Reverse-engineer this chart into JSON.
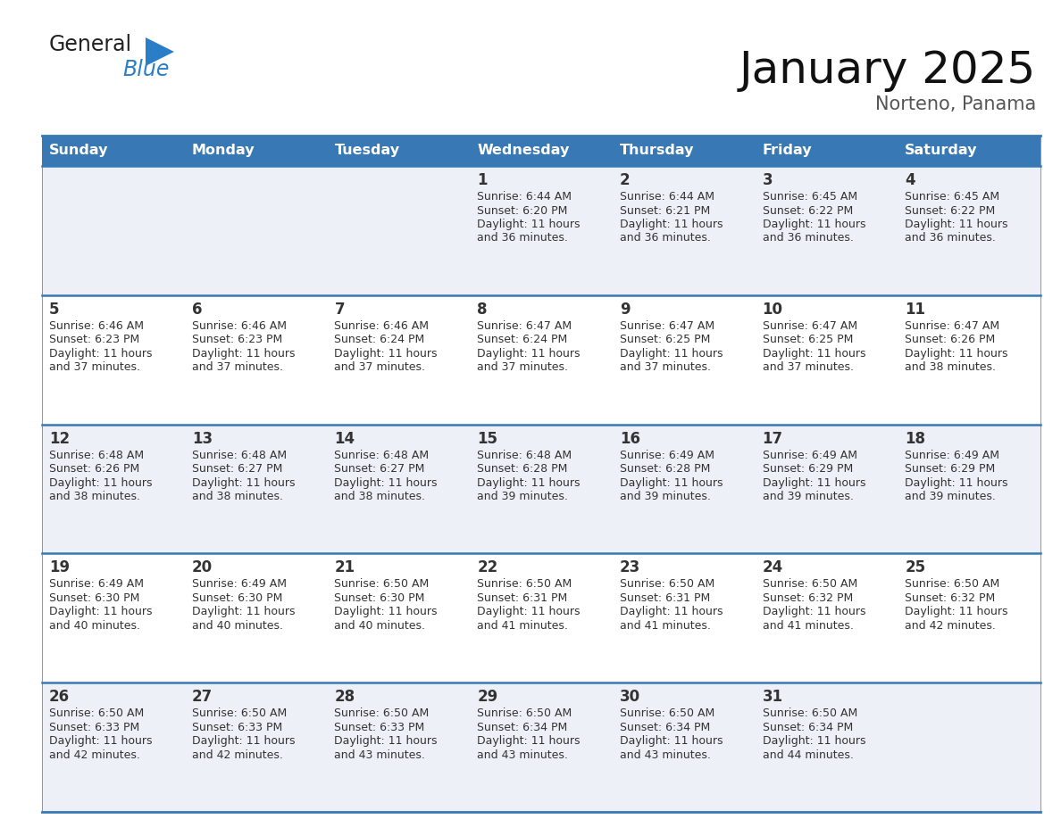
{
  "title": "January 2025",
  "subtitle": "Norteno, Panama",
  "header_color": "#3878b4",
  "header_text_color": "#ffffff",
  "row_bg_color_odd": "#edf1f7",
  "row_bg_color_even": "#ffffff",
  "cell_border_color": "#3878b4",
  "days_of_week": [
    "Sunday",
    "Monday",
    "Tuesday",
    "Wednesday",
    "Thursday",
    "Friday",
    "Saturday"
  ],
  "calendar_data": [
    [
      {
        "day": "",
        "sunrise": "",
        "sunset": "",
        "daylight": ""
      },
      {
        "day": "",
        "sunrise": "",
        "sunset": "",
        "daylight": ""
      },
      {
        "day": "",
        "sunrise": "",
        "sunset": "",
        "daylight": ""
      },
      {
        "day": "1",
        "sunrise": "6:44 AM",
        "sunset": "6:20 PM",
        "daylight": "11 hours and 36 minutes."
      },
      {
        "day": "2",
        "sunrise": "6:44 AM",
        "sunset": "6:21 PM",
        "daylight": "11 hours and 36 minutes."
      },
      {
        "day": "3",
        "sunrise": "6:45 AM",
        "sunset": "6:22 PM",
        "daylight": "11 hours and 36 minutes."
      },
      {
        "day": "4",
        "sunrise": "6:45 AM",
        "sunset": "6:22 PM",
        "daylight": "11 hours and 36 minutes."
      }
    ],
    [
      {
        "day": "5",
        "sunrise": "6:46 AM",
        "sunset": "6:23 PM",
        "daylight": "11 hours and 37 minutes."
      },
      {
        "day": "6",
        "sunrise": "6:46 AM",
        "sunset": "6:23 PM",
        "daylight": "11 hours and 37 minutes."
      },
      {
        "day": "7",
        "sunrise": "6:46 AM",
        "sunset": "6:24 PM",
        "daylight": "11 hours and 37 minutes."
      },
      {
        "day": "8",
        "sunrise": "6:47 AM",
        "sunset": "6:24 PM",
        "daylight": "11 hours and 37 minutes."
      },
      {
        "day": "9",
        "sunrise": "6:47 AM",
        "sunset": "6:25 PM",
        "daylight": "11 hours and 37 minutes."
      },
      {
        "day": "10",
        "sunrise": "6:47 AM",
        "sunset": "6:25 PM",
        "daylight": "11 hours and 37 minutes."
      },
      {
        "day": "11",
        "sunrise": "6:47 AM",
        "sunset": "6:26 PM",
        "daylight": "11 hours and 38 minutes."
      }
    ],
    [
      {
        "day": "12",
        "sunrise": "6:48 AM",
        "sunset": "6:26 PM",
        "daylight": "11 hours and 38 minutes."
      },
      {
        "day": "13",
        "sunrise": "6:48 AM",
        "sunset": "6:27 PM",
        "daylight": "11 hours and 38 minutes."
      },
      {
        "day": "14",
        "sunrise": "6:48 AM",
        "sunset": "6:27 PM",
        "daylight": "11 hours and 38 minutes."
      },
      {
        "day": "15",
        "sunrise": "6:48 AM",
        "sunset": "6:28 PM",
        "daylight": "11 hours and 39 minutes."
      },
      {
        "day": "16",
        "sunrise": "6:49 AM",
        "sunset": "6:28 PM",
        "daylight": "11 hours and 39 minutes."
      },
      {
        "day": "17",
        "sunrise": "6:49 AM",
        "sunset": "6:29 PM",
        "daylight": "11 hours and 39 minutes."
      },
      {
        "day": "18",
        "sunrise": "6:49 AM",
        "sunset": "6:29 PM",
        "daylight": "11 hours and 39 minutes."
      }
    ],
    [
      {
        "day": "19",
        "sunrise": "6:49 AM",
        "sunset": "6:30 PM",
        "daylight": "11 hours and 40 minutes."
      },
      {
        "day": "20",
        "sunrise": "6:49 AM",
        "sunset": "6:30 PM",
        "daylight": "11 hours and 40 minutes."
      },
      {
        "day": "21",
        "sunrise": "6:50 AM",
        "sunset": "6:30 PM",
        "daylight": "11 hours and 40 minutes."
      },
      {
        "day": "22",
        "sunrise": "6:50 AM",
        "sunset": "6:31 PM",
        "daylight": "11 hours and 41 minutes."
      },
      {
        "day": "23",
        "sunrise": "6:50 AM",
        "sunset": "6:31 PM",
        "daylight": "11 hours and 41 minutes."
      },
      {
        "day": "24",
        "sunrise": "6:50 AM",
        "sunset": "6:32 PM",
        "daylight": "11 hours and 41 minutes."
      },
      {
        "day": "25",
        "sunrise": "6:50 AM",
        "sunset": "6:32 PM",
        "daylight": "11 hours and 42 minutes."
      }
    ],
    [
      {
        "day": "26",
        "sunrise": "6:50 AM",
        "sunset": "6:33 PM",
        "daylight": "11 hours and 42 minutes."
      },
      {
        "day": "27",
        "sunrise": "6:50 AM",
        "sunset": "6:33 PM",
        "daylight": "11 hours and 42 minutes."
      },
      {
        "day": "28",
        "sunrise": "6:50 AM",
        "sunset": "6:33 PM",
        "daylight": "11 hours and 43 minutes."
      },
      {
        "day": "29",
        "sunrise": "6:50 AM",
        "sunset": "6:34 PM",
        "daylight": "11 hours and 43 minutes."
      },
      {
        "day": "30",
        "sunrise": "6:50 AM",
        "sunset": "6:34 PM",
        "daylight": "11 hours and 43 minutes."
      },
      {
        "day": "31",
        "sunrise": "6:50 AM",
        "sunset": "6:34 PM",
        "daylight": "11 hours and 44 minutes."
      },
      {
        "day": "",
        "sunrise": "",
        "sunset": "",
        "daylight": ""
      }
    ]
  ],
  "logo_text1": "General",
  "logo_text2": "Blue",
  "logo_color1": "#222222",
  "logo_color2": "#2a7ec8",
  "logo_triangle_color": "#2a7ec8",
  "title_fontsize": 36,
  "subtitle_fontsize": 15,
  "header_fontsize": 11.5,
  "day_num_fontsize": 12,
  "cell_text_fontsize": 9
}
